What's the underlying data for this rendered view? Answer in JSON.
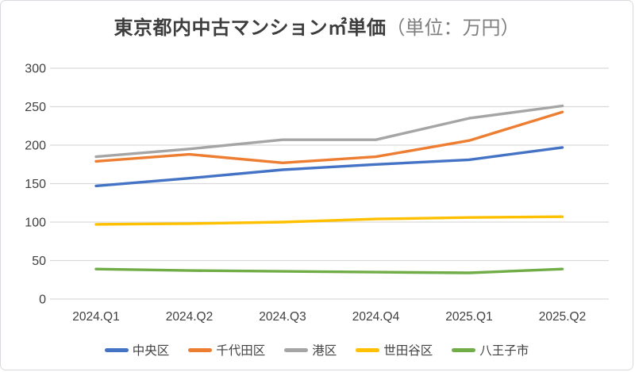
{
  "title": {
    "main": "東京都内中古マンション㎡単価",
    "unit": "（単位：万円）"
  },
  "chart_data": {
    "type": "line",
    "title": "東京都内中古マンション㎡単価（単位：万円）",
    "categories": [
      "2024.Q1",
      "2024.Q2",
      "2024.Q3",
      "2024.Q4",
      "2025.Q1",
      "2025.Q2"
    ],
    "series": [
      {
        "name": "中央区",
        "color": "#4472C4",
        "values": [
          147,
          157,
          168,
          175,
          181,
          197
        ]
      },
      {
        "name": "千代田区",
        "color": "#ED7D31",
        "values": [
          179,
          188,
          177,
          185,
          206,
          243
        ]
      },
      {
        "name": "港区",
        "color": "#A5A5A5",
        "values": [
          185,
          195,
          207,
          207,
          235,
          251
        ]
      },
      {
        "name": "世田谷区",
        "color": "#FFC000",
        "values": [
          97,
          98,
          100,
          104,
          106,
          107
        ]
      },
      {
        "name": "八王子市",
        "color": "#70AD47",
        "values": [
          39,
          37,
          36,
          35,
          34,
          39
        ]
      }
    ],
    "xlabel": "",
    "ylabel": "",
    "ylim": [
      0,
      300
    ],
    "yticks": [
      0,
      50,
      100,
      150,
      200,
      250,
      300
    ],
    "grid": true,
    "legend_position": "bottom"
  },
  "colors": {
    "grid": "#D9D9D9",
    "axis_text": "#404040",
    "title_main": "#3D3D3D",
    "title_unit": "#7F7F7F",
    "border": "#D7DADE",
    "background": "#FFFFFF"
  }
}
